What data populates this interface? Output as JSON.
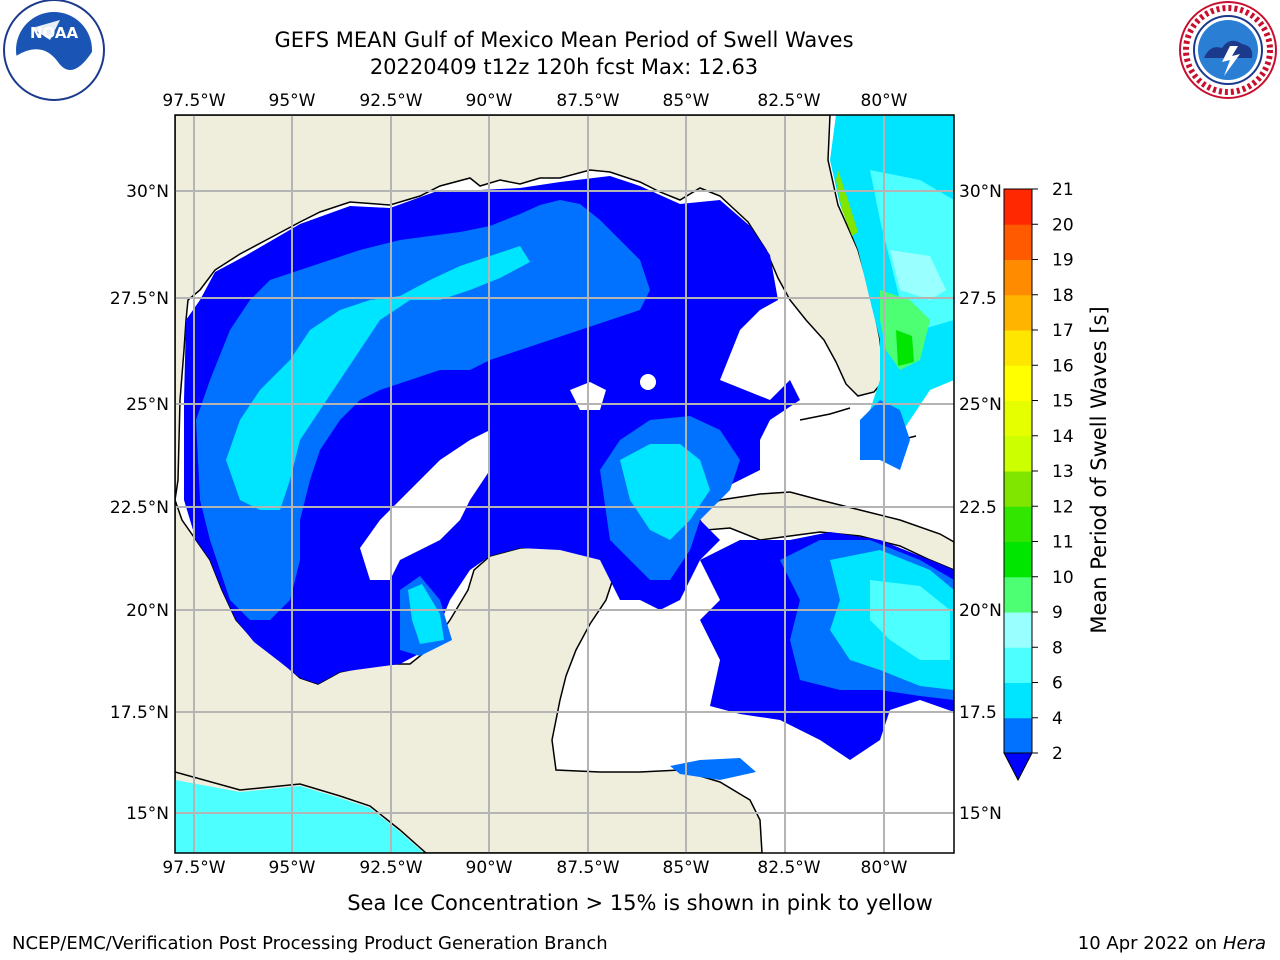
{
  "header": {
    "title_line1": "GEFS MEAN Gulf of Mexico Mean Period of Swell Waves",
    "title_line2": "20220409 t12z 120h fcst   Max: 12.63"
  },
  "logos": {
    "left": {
      "icon": "noaa-logo-icon",
      "text": "NOAA"
    },
    "right": {
      "icon": "nws-logo-icon"
    }
  },
  "map": {
    "lon_labels": [
      "97.5°W",
      "95°W",
      "92.5°W",
      "90°W",
      "87.5°W",
      "85°W",
      "82.5°W",
      "80°W"
    ],
    "lat_labels_left": [
      "30°N",
      "27.5°N",
      "25°N",
      "22.5°N",
      "20°N",
      "17.5°N",
      "15°N"
    ],
    "lat_labels_right": [
      "30°N",
      "27.5",
      "25°N",
      "22.5",
      "20°N",
      "17.5",
      "15°N"
    ],
    "colors": {
      "land": "#efeddc",
      "ocean_missing": "#ffffff",
      "grid": "#b4b4b4"
    }
  },
  "colorbar": {
    "label": "Mean Period of Swell Waves [s]",
    "ticks": [
      "2",
      "4",
      "6",
      "8",
      "9",
      "10",
      "11",
      "12",
      "13",
      "14",
      "15",
      "16",
      "17",
      "18",
      "19",
      "20",
      "21"
    ],
    "colors": [
      "#0072ff",
      "#00e5ff",
      "#4dffff",
      "#99ffff",
      "#4cff73",
      "#00e600",
      "#33e600",
      "#80e600",
      "#ccff00",
      "#e6ff00",
      "#ffff00",
      "#ffe600",
      "#ffb400",
      "#ff8c00",
      "#ff5a00",
      "#ff2800"
    ],
    "under_color": "#0000ff"
  },
  "footer": {
    "note": "Sea Ice Concentration > 15% is shown in pink to yellow",
    "left": "NCEP/EMC/Verification Post Processing Product Generation Branch",
    "right_date": "10 Apr 2022 on ",
    "right_host": "Hera"
  }
}
